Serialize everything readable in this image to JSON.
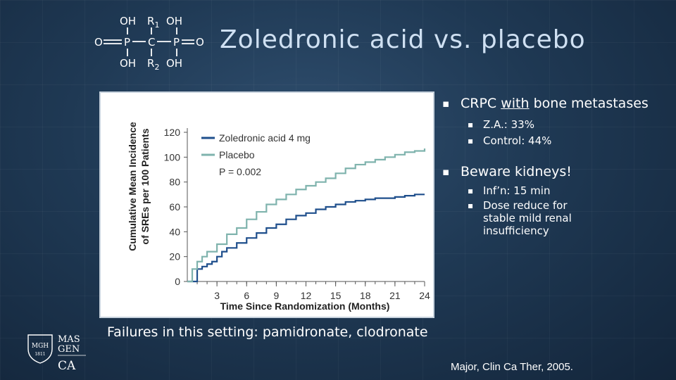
{
  "slide": {
    "title": "Zoledronic acid vs. placebo"
  },
  "molecule": {
    "top_left": "OH",
    "top_mid": "R",
    "top_mid_sub": "1",
    "top_right": "OH",
    "mid_left": "O",
    "mid_p1": "P",
    "mid_c": "C",
    "mid_p2": "P",
    "mid_right": "O",
    "bot_left": "OH",
    "bot_mid": "R",
    "bot_mid_sub": "2",
    "bot_right": "OH"
  },
  "bullets": {
    "b1_pre": "CRPC ",
    "b1_underlined": "with",
    "b1_post": " bone metastases",
    "b1_sub1": "Z.A.: 33%",
    "b1_sub2": "Control: 44%",
    "b2": "Beware kidneys!",
    "b2_sub1": "Inf’n: 15 min",
    "b2_sub2": "Dose reduce for stable mild renal insufficiency"
  },
  "footer_note": "Failures in this setting: pamidronate, clodronate",
  "citation": "Major, Clin Ca Ther, 2005.",
  "logo": {
    "shield_line1": "MGH",
    "shield_line2": "1811",
    "text_line1": "MAS",
    "text_line2": "GEN",
    "text_line3": "CA"
  },
  "chart_data": {
    "type": "line",
    "xlabel": "Time Since Randomization (Months)",
    "ylabel_line1": "Cumulative Mean Incidence",
    "ylabel_line2": "of SREs per 100 Patients",
    "xlim": [
      0,
      24
    ],
    "ylim": [
      0,
      120
    ],
    "x_ticks": [
      3,
      6,
      9,
      12,
      15,
      18,
      21,
      24
    ],
    "y_ticks": [
      0,
      20,
      40,
      60,
      80,
      100,
      120
    ],
    "grid": false,
    "legend_position": "top-left",
    "annotation": "P = 0.002",
    "colors": {
      "zoledronic": "#1f4f8c",
      "placebo": "#7fb3ad"
    },
    "series": [
      {
        "name": "Zoledronic acid 4 mg",
        "color": "#1f4f8c",
        "x": [
          0,
          1,
          1.5,
          2,
          2.5,
          3,
          3.5,
          4,
          5,
          6,
          7,
          8,
          9,
          10,
          11,
          12,
          13,
          14,
          15,
          16,
          17,
          18,
          19,
          20,
          21,
          22,
          23,
          24
        ],
        "y": [
          0,
          10,
          12,
          14,
          16,
          20,
          24,
          27,
          31,
          35,
          39,
          43,
          46,
          50,
          53,
          55,
          58,
          60,
          62,
          64,
          65,
          66,
          67,
          67,
          68,
          69,
          70,
          70
        ]
      },
      {
        "name": "Placebo",
        "color": "#7fb3ad",
        "x": [
          0,
          0.5,
          1,
          1.5,
          2,
          3,
          4,
          5,
          6,
          7,
          8,
          9,
          10,
          11,
          12,
          13,
          14,
          15,
          16,
          17,
          18,
          19,
          20,
          21,
          22,
          23,
          24
        ],
        "y": [
          0,
          10,
          16,
          20,
          24,
          30,
          38,
          43,
          50,
          56,
          62,
          66,
          70,
          74,
          77,
          80,
          83,
          87,
          91,
          94,
          96,
          98,
          100,
          102,
          104,
          105,
          107
        ]
      }
    ]
  }
}
